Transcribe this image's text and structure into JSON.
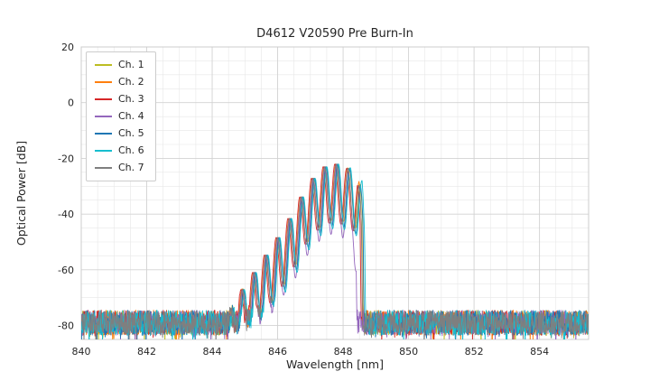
{
  "figure": {
    "background": "#ffffff"
  },
  "chart_data": {
    "type": "line",
    "title": "D4612 V20590 Pre Burn-In",
    "xlabel": "Wavelength [nm]",
    "ylabel": "Optical Power [dB]",
    "xlim": [
      840,
      855.5
    ],
    "ylim": [
      -85,
      20
    ],
    "xticks": [
      840,
      842,
      844,
      846,
      848,
      850,
      852,
      854
    ],
    "yticks": [
      20,
      0,
      -20,
      -40,
      -60,
      -80
    ],
    "minor_x_step": 0.5,
    "minor_y_step": 5,
    "grid": true,
    "legend_position": "upper left",
    "series": [
      {
        "name": "Ch. 1",
        "color": "#bcbd22",
        "x_offset": 0.02,
        "cutoff_shift": 0.0,
        "ripple_extra": 0,
        "seed": 11
      },
      {
        "name": "Ch. 2",
        "color": "#ff7f0e",
        "x_offset": -0.03,
        "cutoff_shift": 0.02,
        "ripple_extra": 0,
        "seed": 22
      },
      {
        "name": "Ch. 3",
        "color": "#d62728",
        "x_offset": -0.06,
        "cutoff_shift": 0.0,
        "ripple_extra": 1,
        "seed": 33
      },
      {
        "name": "Ch. 4",
        "color": "#9467bd",
        "x_offset": 0.0,
        "cutoff_shift": -0.18,
        "ripple_extra": 5,
        "seed": 44
      },
      {
        "name": "Ch. 5",
        "color": "#1f77b4",
        "x_offset": 0.03,
        "cutoff_shift": 0.0,
        "ripple_extra": 2,
        "seed": 55
      },
      {
        "name": "Ch. 6",
        "color": "#17becf",
        "x_offset": 0.05,
        "cutoff_shift": 0.03,
        "ripple_extra": 3,
        "seed": 66
      },
      {
        "name": "Ch. 7",
        "color": "#7f7f7f",
        "x_offset": -0.02,
        "cutoff_shift": 0.0,
        "ripple_extra": 1,
        "seed": 77
      }
    ],
    "spectrum": {
      "noise_floor_db": -79,
      "noise_halfband_db": 4.5,
      "spike_prob": 0.06,
      "spike_db": 5,
      "envelope": [
        [
          844.35,
          -95
        ],
        [
          844.6,
          -76
        ],
        [
          844.95,
          -67
        ],
        [
          845.35,
          -60
        ],
        [
          845.75,
          -53
        ],
        [
          846.15,
          -46
        ],
        [
          846.55,
          -38
        ],
        [
          846.9,
          -30
        ],
        [
          847.2,
          -25.5
        ],
        [
          847.5,
          -22.5
        ],
        [
          847.8,
          -22
        ],
        [
          848.1,
          -23
        ],
        [
          848.35,
          -25
        ],
        [
          848.5,
          -28
        ],
        [
          848.58,
          -40
        ],
        [
          848.65,
          -110
        ]
      ],
      "ripple_period_nm": 0.36,
      "ripple_depth_db": 20,
      "ripple_phase_nm": 847.45,
      "x_step_nm": 0.012
    }
  }
}
